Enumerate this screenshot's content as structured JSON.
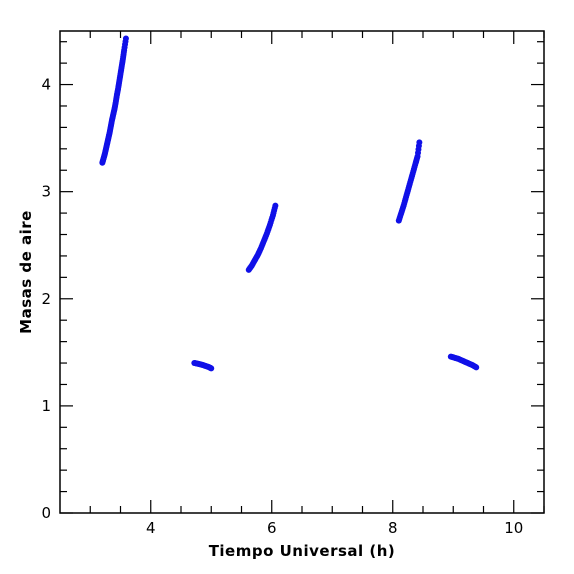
{
  "chart_data": {
    "type": "scatter",
    "title": "",
    "xlabel": "Tiempo Universal (h)",
    "ylabel": "Masas de aire",
    "xlim": [
      2.5,
      10.5
    ],
    "ylim": [
      0,
      4.5
    ],
    "x_ticks": [
      4,
      6,
      8,
      10
    ],
    "y_ticks": [
      0,
      1,
      2,
      3,
      4
    ],
    "x_tick_labels": [
      "4",
      "6",
      "8",
      "10"
    ],
    "y_tick_labels": [
      "0",
      "1",
      "2",
      "3",
      "4"
    ],
    "grid": false,
    "legend": false,
    "marker_color": "#1010e8",
    "series": [
      {
        "points": [
          [
            3.2,
            3.27
          ],
          [
            3.22,
            3.31
          ],
          [
            3.24,
            3.35
          ],
          [
            3.26,
            3.4
          ],
          [
            3.28,
            3.45
          ],
          [
            3.3,
            3.5
          ],
          [
            3.32,
            3.55
          ],
          [
            3.34,
            3.61
          ],
          [
            3.36,
            3.67
          ],
          [
            3.38,
            3.72
          ],
          [
            3.4,
            3.77
          ],
          [
            3.42,
            3.83
          ],
          [
            3.44,
            3.9
          ],
          [
            3.46,
            3.96
          ],
          [
            3.48,
            4.03
          ],
          [
            3.5,
            4.1
          ],
          [
            3.52,
            4.17
          ],
          [
            3.54,
            4.24
          ],
          [
            3.56,
            4.32
          ],
          [
            3.59,
            4.43
          ]
        ]
      },
      {
        "points": [
          [
            4.72,
            1.4
          ],
          [
            4.77,
            1.395
          ],
          [
            4.82,
            1.388
          ],
          [
            4.87,
            1.38
          ],
          [
            4.92,
            1.37
          ],
          [
            4.97,
            1.36
          ],
          [
            5.0,
            1.35
          ]
        ]
      },
      {
        "points": [
          [
            5.62,
            2.27
          ],
          [
            5.67,
            2.31
          ],
          [
            5.72,
            2.36
          ],
          [
            5.77,
            2.41
          ],
          [
            5.82,
            2.47
          ],
          [
            5.87,
            2.54
          ],
          [
            5.92,
            2.61
          ],
          [
            5.97,
            2.69
          ],
          [
            6.02,
            2.78
          ],
          [
            6.06,
            2.87
          ]
        ]
      },
      {
        "points": [
          [
            8.1,
            2.73
          ],
          [
            8.14,
            2.8
          ],
          [
            8.18,
            2.87
          ],
          [
            8.22,
            2.95
          ],
          [
            8.26,
            3.03
          ],
          [
            8.3,
            3.11
          ],
          [
            8.34,
            3.19
          ],
          [
            8.38,
            3.27
          ],
          [
            8.41,
            3.33
          ],
          [
            8.44,
            3.46
          ]
        ]
      },
      {
        "points": [
          [
            8.96,
            1.46
          ],
          [
            9.02,
            1.45
          ],
          [
            9.08,
            1.44
          ],
          [
            9.14,
            1.425
          ],
          [
            9.2,
            1.41
          ],
          [
            9.26,
            1.395
          ],
          [
            9.32,
            1.38
          ],
          [
            9.38,
            1.36
          ]
        ]
      }
    ]
  }
}
